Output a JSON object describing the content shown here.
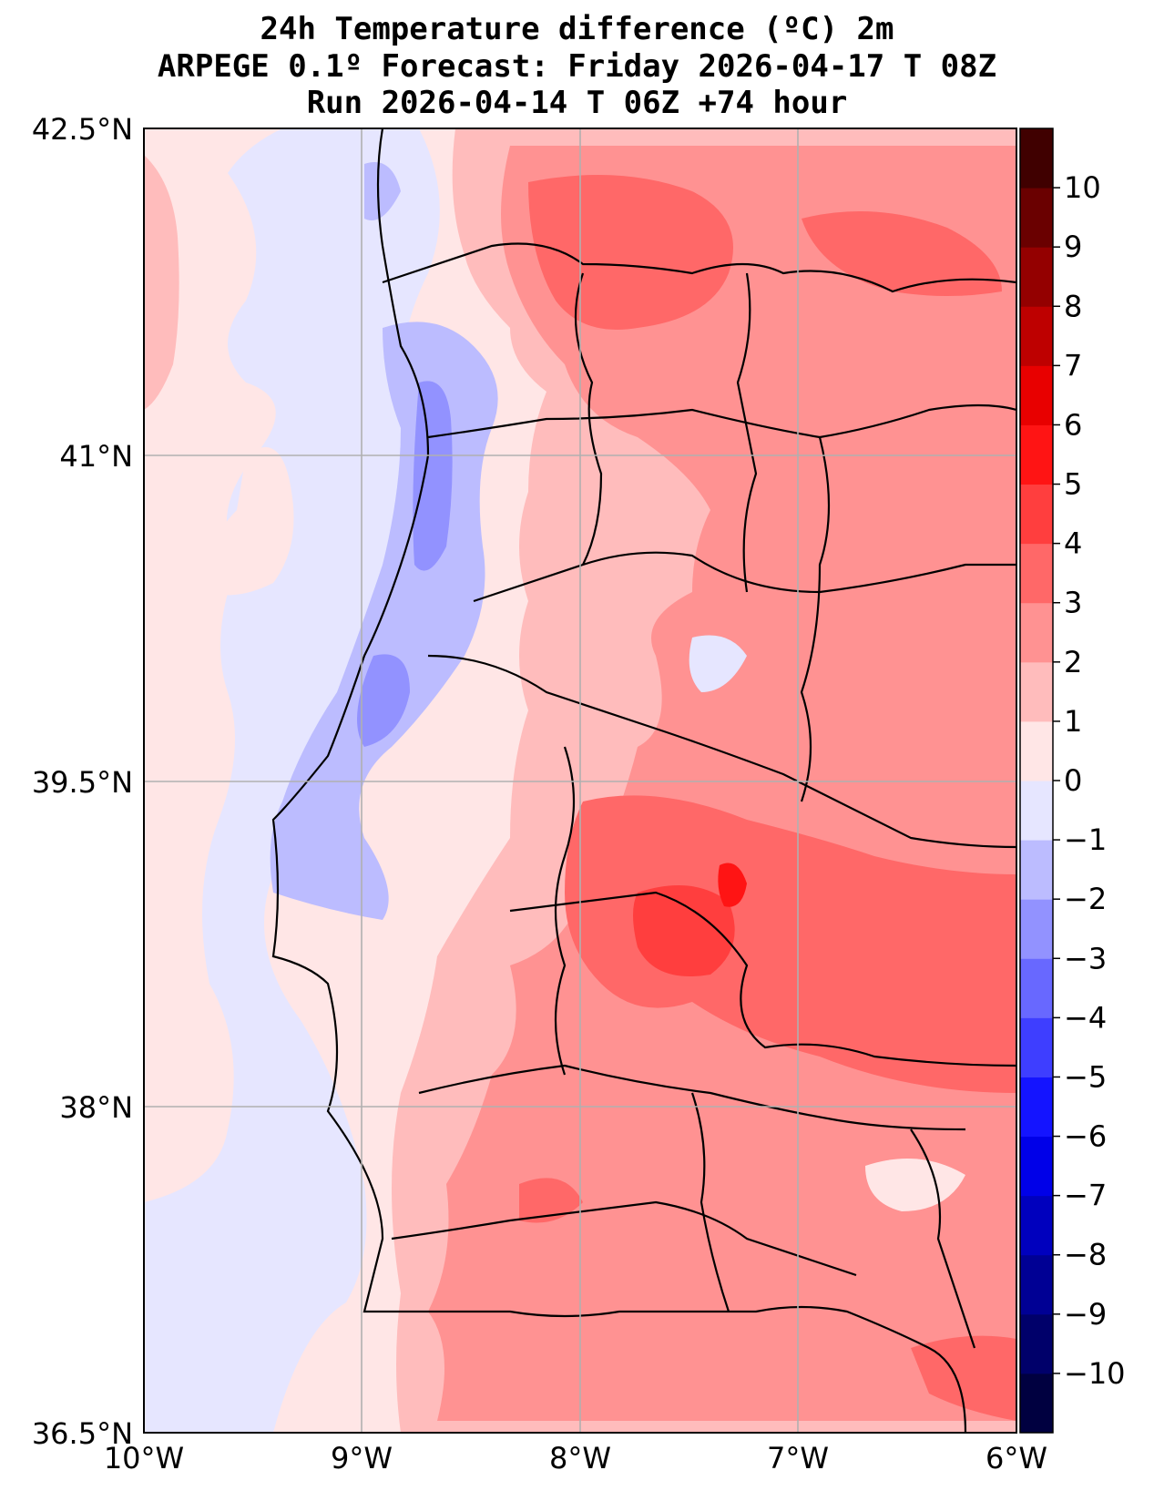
{
  "title": {
    "line1": "24h Temperature difference (ºC) 2m",
    "line2": "ARPEGE 0.1º Forecast: Friday 2026-04-17 T 08Z",
    "line3": "Run 2026-04-14 T 06Z +74 hour"
  },
  "map": {
    "lon_range": [
      -10,
      -6
    ],
    "lat_range": [
      36.5,
      42.5
    ],
    "lat_ticks": [
      {
        "value": 42.5,
        "label": "42.5°N"
      },
      {
        "value": 41,
        "label": "41°N"
      },
      {
        "value": 39.5,
        "label": "39.5°N"
      },
      {
        "value": 38,
        "label": "38°N"
      },
      {
        "value": 36.5,
        "label": "36.5°N"
      }
    ],
    "lon_ticks": [
      {
        "value": -10,
        "label": "10°W"
      },
      {
        "value": -9,
        "label": "9°W"
      },
      {
        "value": -8,
        "label": "8°W"
      },
      {
        "value": -7,
        "label": "7°W"
      },
      {
        "value": -6,
        "label": "6°W"
      }
    ]
  },
  "colorbar": {
    "min": -11,
    "max": 11,
    "labels": [
      "10",
      "9",
      "8",
      "7",
      "6",
      "5",
      "4",
      "3",
      "2",
      "1",
      "0",
      "−1",
      "−2",
      "−3",
      "−4",
      "−5",
      "−6",
      "−7",
      "−8",
      "−9",
      "−10"
    ],
    "colors": [
      "#000040",
      "#00006a",
      "#000094",
      "#0000be",
      "#0000e8",
      "#1414ff",
      "#3e3eff",
      "#6868ff",
      "#9292ff",
      "#bcbcff",
      "#e6e6ff",
      "#ffe6e6",
      "#ffbcbc",
      "#ff9292",
      "#ff6868",
      "#ff3e3e",
      "#ff1414",
      "#e80000",
      "#be0000",
      "#940000",
      "#6a0000",
      "#400000"
    ]
  }
}
